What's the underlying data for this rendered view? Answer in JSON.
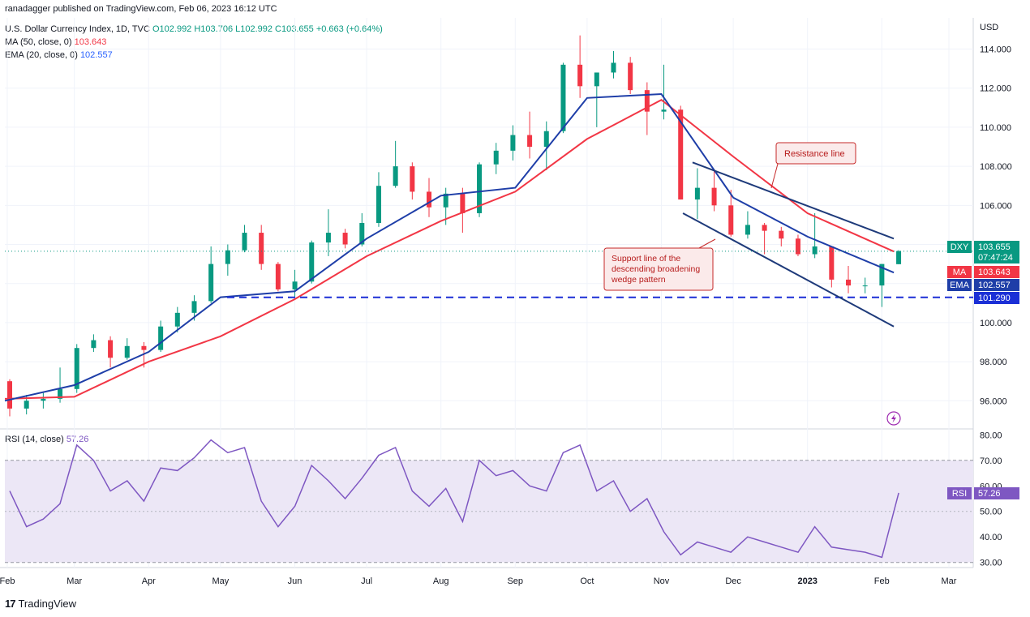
{
  "header": {
    "publisher": "ranadagger published on TradingView.com, Feb 06, 2023 16:12 UTC",
    "symbol": "U.S. Dollar Currency Index, 1D, TVC",
    "ohlc": "O102.992 H103.706 L102.992 C103.655 +0.663 (+0.64%)",
    "ma_label": "MA (50, close, 0)",
    "ma_value": "103.643",
    "ema_label": "EMA (20, close, 0)",
    "ema_value": "102.557",
    "rsi_label": "RSI (14, close)",
    "rsi_value": "57.26"
  },
  "footer": {
    "brand": "TradingView"
  },
  "annotations": {
    "resistance": "Resistance line",
    "support_lines": [
      "Support line of the",
      "descending broadening",
      "wedge pattern"
    ]
  },
  "badges": {
    "dxy": {
      "label": "DXY",
      "value": "103.655",
      "countdown": "07:47:24"
    },
    "ma": {
      "label": "MA",
      "value": "103.643"
    },
    "ema": {
      "label": "EMA",
      "value": "102.557"
    },
    "support": {
      "value": "101.290"
    },
    "rsi": {
      "label": "RSI",
      "value": "57.26"
    }
  },
  "colors": {
    "up": "#089981",
    "down": "#f23645",
    "ma": "#f23645",
    "ema": "#1e3ea8",
    "rsi": "#7e57c2",
    "rsi_band": "#ece7f6",
    "support": "#1b2fd6",
    "trendline": "#1e3a7a"
  },
  "chart_data": [
    {
      "type": "candlestick",
      "currency_label": "USD",
      "y_ticks": [
        "96.000",
        "98.000",
        "100.000",
        "102.000",
        "104.000",
        "106.000",
        "108.000",
        "110.000",
        "112.000",
        "114.000"
      ],
      "x_ticks": [
        "Feb",
        "Mar",
        "Apr",
        "May",
        "Jun",
        "Jul",
        "Aug",
        "Sep",
        "Oct",
        "Nov",
        "Dec",
        "2023",
        "Feb",
        "Mar"
      ],
      "ylim": [
        94.6,
        115.6
      ],
      "support_level": 101.29,
      "resistance_line": [
        {
          "x": "2022-11-14",
          "y": 108.2
        },
        {
          "x": "2023-02-06",
          "y": 104.3
        }
      ],
      "support_line": [
        {
          "x": "2022-11-10",
          "y": 105.6
        },
        {
          "x": "2023-02-06",
          "y": 99.8
        }
      ],
      "ohlc_weekly": [
        {
          "x": "2022-01-31",
          "o": 97.0,
          "h": 97.1,
          "l": 95.2,
          "c": 95.6
        },
        {
          "x": "2022-02-07",
          "o": 95.6,
          "h": 96.3,
          "l": 95.3,
          "c": 96.0
        },
        {
          "x": "2022-02-14",
          "o": 96.0,
          "h": 96.4,
          "l": 95.6,
          "c": 96.1
        },
        {
          "x": "2022-02-21",
          "o": 96.1,
          "h": 97.7,
          "l": 95.9,
          "c": 96.6
        },
        {
          "x": "2022-02-28",
          "o": 96.6,
          "h": 98.9,
          "l": 96.4,
          "c": 98.7
        },
        {
          "x": "2022-03-07",
          "o": 98.7,
          "h": 99.4,
          "l": 98.5,
          "c": 99.1
        },
        {
          "x": "2022-03-14",
          "o": 99.1,
          "h": 99.3,
          "l": 97.7,
          "c": 98.2
        },
        {
          "x": "2022-03-21",
          "o": 98.2,
          "h": 99.2,
          "l": 98.1,
          "c": 98.8
        },
        {
          "x": "2022-03-28",
          "o": 98.8,
          "h": 99.0,
          "l": 97.7,
          "c": 98.6
        },
        {
          "x": "2022-04-04",
          "o": 98.6,
          "h": 100.1,
          "l": 98.5,
          "c": 99.8
        },
        {
          "x": "2022-04-11",
          "o": 99.8,
          "h": 100.8,
          "l": 99.5,
          "c": 100.5
        },
        {
          "x": "2022-04-18",
          "o": 100.5,
          "h": 101.4,
          "l": 100.1,
          "c": 101.1
        },
        {
          "x": "2022-04-25",
          "o": 101.1,
          "h": 103.9,
          "l": 101.0,
          "c": 103.0
        },
        {
          "x": "2022-05-02",
          "o": 103.0,
          "h": 104.0,
          "l": 102.4,
          "c": 103.7
        },
        {
          "x": "2022-05-09",
          "o": 103.7,
          "h": 105.0,
          "l": 103.6,
          "c": 104.6
        },
        {
          "x": "2022-05-16",
          "o": 104.6,
          "h": 105.0,
          "l": 102.7,
          "c": 103.0
        },
        {
          "x": "2022-05-23",
          "o": 103.0,
          "h": 103.1,
          "l": 101.6,
          "c": 101.7
        },
        {
          "x": "2022-05-30",
          "o": 101.7,
          "h": 102.7,
          "l": 101.3,
          "c": 102.1
        },
        {
          "x": "2022-06-06",
          "o": 102.1,
          "h": 104.2,
          "l": 102.0,
          "c": 104.1
        },
        {
          "x": "2022-06-13",
          "o": 104.1,
          "h": 105.8,
          "l": 103.4,
          "c": 104.6
        },
        {
          "x": "2022-06-20",
          "o": 104.6,
          "h": 104.8,
          "l": 103.8,
          "c": 104.0
        },
        {
          "x": "2022-06-27",
          "o": 104.0,
          "h": 105.6,
          "l": 103.9,
          "c": 105.1
        },
        {
          "x": "2022-07-04",
          "o": 105.1,
          "h": 107.7,
          "l": 104.9,
          "c": 107.0
        },
        {
          "x": "2022-07-11",
          "o": 107.0,
          "h": 109.3,
          "l": 106.9,
          "c": 108.0
        },
        {
          "x": "2022-07-18",
          "o": 108.0,
          "h": 108.2,
          "l": 106.3,
          "c": 106.7
        },
        {
          "x": "2022-07-25",
          "o": 106.7,
          "h": 107.4,
          "l": 105.4,
          "c": 105.9
        },
        {
          "x": "2022-08-01",
          "o": 105.9,
          "h": 106.9,
          "l": 105.0,
          "c": 106.6
        },
        {
          "x": "2022-08-08",
          "o": 106.6,
          "h": 106.9,
          "l": 104.6,
          "c": 105.6
        },
        {
          "x": "2022-08-15",
          "o": 105.6,
          "h": 108.2,
          "l": 105.4,
          "c": 108.1
        },
        {
          "x": "2022-08-22",
          "o": 108.1,
          "h": 109.2,
          "l": 107.6,
          "c": 108.8
        },
        {
          "x": "2022-08-29",
          "o": 108.8,
          "h": 110.1,
          "l": 108.3,
          "c": 109.6
        },
        {
          "x": "2022-09-05",
          "o": 109.6,
          "h": 110.8,
          "l": 108.4,
          "c": 109.0
        },
        {
          "x": "2022-09-12",
          "o": 109.0,
          "h": 110.3,
          "l": 107.8,
          "c": 109.8
        },
        {
          "x": "2022-09-19",
          "o": 109.8,
          "h": 113.3,
          "l": 109.7,
          "c": 113.2
        },
        {
          "x": "2022-09-26",
          "o": 113.2,
          "h": 114.7,
          "l": 111.5,
          "c": 112.1
        },
        {
          "x": "2022-10-03",
          "o": 112.1,
          "h": 112.8,
          "l": 110.0,
          "c": 112.8
        },
        {
          "x": "2022-10-10",
          "o": 112.8,
          "h": 113.9,
          "l": 112.5,
          "c": 113.3
        },
        {
          "x": "2022-10-17",
          "o": 113.3,
          "h": 113.6,
          "l": 111.7,
          "c": 111.9
        },
        {
          "x": "2022-10-24",
          "o": 111.9,
          "h": 112.3,
          "l": 109.6,
          "c": 110.8
        },
        {
          "x": "2022-10-31",
          "o": 110.8,
          "h": 113.2,
          "l": 110.4,
          "c": 110.9
        },
        {
          "x": "2022-11-07",
          "o": 110.9,
          "h": 111.1,
          "l": 106.3,
          "c": 106.3
        },
        {
          "x": "2022-11-14",
          "o": 106.3,
          "h": 107.9,
          "l": 105.3,
          "c": 106.9
        },
        {
          "x": "2022-11-21",
          "o": 106.9,
          "h": 107.8,
          "l": 105.7,
          "c": 106.0
        },
        {
          "x": "2022-11-28",
          "o": 106.0,
          "h": 106.8,
          "l": 104.4,
          "c": 104.5
        },
        {
          "x": "2022-12-05",
          "o": 104.5,
          "h": 105.7,
          "l": 104.3,
          "c": 105.0
        },
        {
          "x": "2022-12-12",
          "o": 105.0,
          "h": 105.1,
          "l": 103.5,
          "c": 104.7
        },
        {
          "x": "2022-12-19",
          "o": 104.7,
          "h": 104.9,
          "l": 103.9,
          "c": 104.3
        },
        {
          "x": "2022-12-26",
          "o": 104.3,
          "h": 104.5,
          "l": 103.4,
          "c": 103.5
        },
        {
          "x": "2023-01-02",
          "o": 103.5,
          "h": 105.6,
          "l": 103.3,
          "c": 103.9
        },
        {
          "x": "2023-01-09",
          "o": 103.9,
          "h": 103.9,
          "l": 101.8,
          "c": 102.2
        },
        {
          "x": "2023-01-16",
          "o": 102.2,
          "h": 102.9,
          "l": 101.5,
          "c": 101.9
        },
        {
          "x": "2023-01-23",
          "o": 101.9,
          "h": 102.3,
          "l": 101.5,
          "c": 101.9
        },
        {
          "x": "2023-01-30",
          "o": 101.9,
          "h": 103.0,
          "l": 100.8,
          "c": 103.0
        },
        {
          "x": "2023-02-06",
          "o": 102.99,
          "h": 103.71,
          "l": 102.99,
          "c": 103.66
        }
      ],
      "series": [
        {
          "name": "MA (50, close, 0)",
          "x": [
            "2022-01-31",
            "2022-03-01",
            "2022-04-01",
            "2022-05-01",
            "2022-06-01",
            "2022-07-01",
            "2022-08-01",
            "2022-09-01",
            "2022-10-01",
            "2022-11-01",
            "2022-12-01",
            "2023-01-01",
            "2023-02-06"
          ],
          "values": [
            96.1,
            96.2,
            98.0,
            99.3,
            101.2,
            103.4,
            105.2,
            106.7,
            109.4,
            111.4,
            108.5,
            105.6,
            103.64
          ]
        },
        {
          "name": "EMA (20, close, 0)",
          "x": [
            "2022-01-31",
            "2022-03-01",
            "2022-04-01",
            "2022-05-01",
            "2022-06-01",
            "2022-07-01",
            "2022-08-01",
            "2022-09-01",
            "2022-10-01",
            "2022-11-01",
            "2022-12-01",
            "2023-01-01",
            "2023-02-06"
          ],
          "values": [
            96.0,
            96.8,
            98.5,
            101.3,
            101.6,
            104.3,
            106.5,
            106.9,
            111.5,
            111.7,
            106.4,
            104.4,
            102.56
          ]
        }
      ]
    },
    {
      "type": "line",
      "name": "RSI (14, close)",
      "y_ticks": [
        "30.00",
        "40.00",
        "50.00",
        "60.00",
        "70.00",
        "80.00"
      ],
      "ylim": [
        28,
        82
      ],
      "band": [
        30,
        70
      ],
      "x": [
        "2022-01-31",
        "2022-02-07",
        "2022-02-14",
        "2022-02-21",
        "2022-02-28",
        "2022-03-07",
        "2022-03-14",
        "2022-03-21",
        "2022-03-28",
        "2022-04-04",
        "2022-04-11",
        "2022-04-18",
        "2022-04-25",
        "2022-05-02",
        "2022-05-09",
        "2022-05-16",
        "2022-05-23",
        "2022-05-30",
        "2022-06-06",
        "2022-06-13",
        "2022-06-20",
        "2022-06-27",
        "2022-07-04",
        "2022-07-11",
        "2022-07-18",
        "2022-07-25",
        "2022-08-01",
        "2022-08-08",
        "2022-08-15",
        "2022-08-22",
        "2022-08-29",
        "2022-09-05",
        "2022-09-12",
        "2022-09-19",
        "2022-09-26",
        "2022-10-03",
        "2022-10-10",
        "2022-10-17",
        "2022-10-24",
        "2022-10-31",
        "2022-11-07",
        "2022-11-14",
        "2022-11-21",
        "2022-11-28",
        "2022-12-05",
        "2022-12-12",
        "2022-12-19",
        "2022-12-26",
        "2023-01-02",
        "2023-01-09",
        "2023-01-16",
        "2023-01-23",
        "2023-01-30",
        "2023-02-06"
      ],
      "values": [
        58,
        44,
        47,
        53,
        76,
        70,
        58,
        62,
        54,
        67,
        66,
        71,
        78,
        73,
        75,
        54,
        44,
        52,
        68,
        62,
        55,
        63,
        72,
        75,
        58,
        52,
        59,
        46,
        70,
        64,
        66,
        60,
        58,
        73,
        76,
        58,
        62,
        50,
        55,
        42,
        33,
        38,
        36,
        34,
        40,
        38,
        36,
        34,
        44,
        36,
        35,
        34,
        32,
        57.26
      ]
    }
  ]
}
